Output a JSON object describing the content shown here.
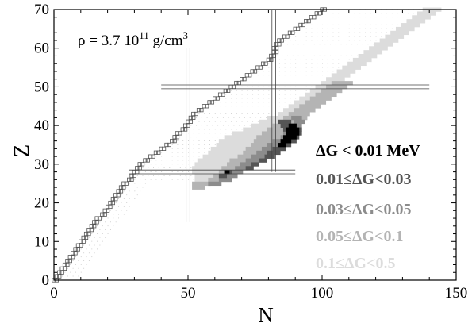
{
  "chart_data": {
    "type": "heatmap",
    "xlabel": "N",
    "ylabel": "Z",
    "xlim": [
      0,
      150
    ],
    "ylim": [
      0,
      70
    ],
    "xticks": [
      "0",
      "50",
      "100",
      "150"
    ],
    "yticks": [
      "0",
      "10",
      "20",
      "30",
      "40",
      "50",
      "60",
      "70"
    ],
    "annotation": {
      "prefix": "ρ = 3.7 10",
      "exponent": "11",
      "unit": " g/cm",
      "unit_exponent": "3"
    },
    "magic_numbers": {
      "N": [
        50,
        82
      ],
      "Z": [
        28,
        50
      ]
    },
    "legend": [
      {
        "label": "ΔG < 0.01 MeV",
        "color": "#000000"
      },
      {
        "label": "0.01≤ΔG<0.03",
        "color": "#555555"
      },
      {
        "label": "0.03≤ΔG<0.05",
        "color": "#8c8c8c"
      },
      {
        "label": "0.05≤ΔG<0.1",
        "color": "#b4b4b4"
      },
      {
        "label": "0.1≤ΔG<0.5",
        "color": "#dcdcdc"
      }
    ],
    "drip_line_N_by_Z": [
      [
        0,
        0
      ],
      [
        1,
        1
      ],
      [
        2,
        2
      ],
      [
        3,
        3
      ],
      [
        4,
        4
      ],
      [
        5,
        5
      ],
      [
        6,
        6
      ],
      [
        7,
        7
      ],
      [
        8,
        8
      ],
      [
        9,
        9
      ],
      [
        10,
        10
      ],
      [
        11,
        11
      ],
      [
        12,
        12
      ],
      [
        13,
        13
      ],
      [
        14,
        14
      ],
      [
        15,
        15
      ],
      [
        16,
        16
      ],
      [
        17,
        18
      ],
      [
        18,
        19
      ],
      [
        19,
        20
      ],
      [
        20,
        21
      ],
      [
        21,
        22
      ],
      [
        22,
        23
      ],
      [
        23,
        24
      ],
      [
        24,
        25
      ],
      [
        25,
        26
      ],
      [
        26,
        28
      ],
      [
        27,
        29
      ],
      [
        28,
        30
      ],
      [
        29,
        31
      ],
      [
        30,
        32
      ],
      [
        31,
        34
      ],
      [
        32,
        36
      ],
      [
        33,
        38
      ],
      [
        34,
        40
      ],
      [
        35,
        42
      ],
      [
        36,
        44
      ],
      [
        37,
        45
      ],
      [
        38,
        46
      ],
      [
        39,
        48
      ],
      [
        40,
        49
      ],
      [
        41,
        50
      ],
      [
        42,
        51
      ],
      [
        43,
        52
      ],
      [
        44,
        54
      ],
      [
        45,
        56
      ],
      [
        46,
        58
      ],
      [
        47,
        60
      ],
      [
        48,
        62
      ],
      [
        49,
        64
      ],
      [
        50,
        66
      ],
      [
        51,
        68
      ],
      [
        52,
        70
      ],
      [
        53,
        72
      ],
      [
        54,
        74
      ],
      [
        55,
        76
      ],
      [
        56,
        78
      ],
      [
        57,
        80
      ],
      [
        58,
        81
      ],
      [
        59,
        82
      ],
      [
        60,
        82
      ],
      [
        61,
        83
      ],
      [
        62,
        84
      ],
      [
        63,
        86
      ],
      [
        64,
        88
      ],
      [
        65,
        90
      ],
      [
        66,
        92
      ],
      [
        67,
        94
      ],
      [
        68,
        96
      ],
      [
        69,
        98
      ],
      [
        70,
        100
      ]
    ],
    "bands": [
      {
        "level": 4,
        "cells": [
          [
            26,
            53,
            58
          ],
          [
            27,
            53,
            60
          ],
          [
            28,
            52,
            62
          ],
          [
            29,
            52,
            64
          ],
          [
            30,
            53,
            66
          ],
          [
            31,
            54,
            67
          ],
          [
            32,
            56,
            69
          ],
          [
            33,
            58,
            71
          ],
          [
            34,
            59,
            73
          ],
          [
            35,
            61,
            75
          ],
          [
            36,
            62,
            77
          ],
          [
            37,
            64,
            79
          ],
          [
            38,
            67,
            81
          ],
          [
            39,
            71,
            83
          ],
          [
            40,
            74,
            85
          ],
          [
            41,
            77,
            87
          ],
          [
            42,
            80,
            89
          ],
          [
            43,
            84,
            90
          ],
          [
            44,
            86,
            92
          ],
          [
            45,
            88,
            94
          ],
          [
            46,
            90,
            96
          ],
          [
            47,
            92,
            98
          ],
          [
            48,
            94,
            100
          ],
          [
            49,
            96,
            102
          ],
          [
            50,
            98,
            104
          ],
          [
            51,
            100,
            106
          ],
          [
            52,
            102,
            108
          ],
          [
            53,
            104,
            110
          ],
          [
            54,
            106,
            112
          ],
          [
            55,
            108,
            114
          ],
          [
            56,
            110,
            116
          ],
          [
            57,
            112,
            118
          ],
          [
            58,
            114,
            120
          ],
          [
            59,
            116,
            122
          ],
          [
            60,
            118,
            124
          ],
          [
            61,
            120,
            126
          ],
          [
            62,
            122,
            128
          ],
          [
            63,
            124,
            130
          ],
          [
            64,
            126,
            132
          ],
          [
            65,
            128,
            134
          ],
          [
            66,
            130,
            136
          ],
          [
            67,
            132,
            138
          ],
          [
            68,
            134,
            140
          ],
          [
            69,
            136,
            142
          ],
          [
            70,
            138,
            144
          ]
        ]
      },
      {
        "level": 3,
        "cells": [
          [
            24,
            52,
            56
          ],
          [
            25,
            52,
            58
          ],
          [
            26,
            58,
            62
          ],
          [
            27,
            60,
            64
          ],
          [
            28,
            62,
            66
          ],
          [
            29,
            63,
            68
          ],
          [
            30,
            65,
            70
          ],
          [
            31,
            66,
            72
          ],
          [
            32,
            69,
            74
          ],
          [
            33,
            71,
            76
          ],
          [
            34,
            72,
            78
          ],
          [
            35,
            74,
            80
          ],
          [
            36,
            75,
            82
          ],
          [
            37,
            76,
            85
          ],
          [
            38,
            78,
            86
          ],
          [
            39,
            80,
            88
          ],
          [
            40,
            82,
            90
          ],
          [
            41,
            84,
            92
          ],
          [
            42,
            86,
            94
          ],
          [
            43,
            88,
            95
          ],
          [
            44,
            90,
            97
          ],
          [
            45,
            92,
            99
          ],
          [
            46,
            94,
            101
          ],
          [
            47,
            96,
            103
          ],
          [
            48,
            98,
            105
          ],
          [
            49,
            100,
            107
          ],
          [
            50,
            102,
            109
          ],
          [
            51,
            104,
            111
          ]
        ]
      },
      {
        "level": 2,
        "cells": [
          [
            25,
            58,
            62
          ],
          [
            26,
            62,
            66
          ],
          [
            27,
            64,
            68
          ],
          [
            28,
            66,
            70
          ],
          [
            29,
            68,
            72
          ],
          [
            30,
            70,
            74
          ],
          [
            31,
            72,
            76
          ],
          [
            32,
            74,
            78
          ],
          [
            33,
            76,
            81
          ],
          [
            34,
            78,
            84
          ],
          [
            35,
            80,
            86
          ],
          [
            36,
            82,
            88
          ],
          [
            37,
            85,
            90
          ],
          [
            38,
            86,
            91
          ],
          [
            39,
            88,
            92
          ],
          [
            40,
            90,
            92
          ],
          [
            41,
            90,
            93
          ],
          [
            42,
            89,
            92
          ]
        ]
      },
      {
        "level": 1,
        "cells": [
          [
            27,
            62,
            64
          ],
          [
            28,
            64,
            66
          ],
          [
            29,
            72,
            74
          ],
          [
            30,
            74,
            76
          ],
          [
            31,
            77,
            79
          ],
          [
            32,
            79,
            82
          ],
          [
            33,
            80,
            84
          ],
          [
            34,
            82,
            86
          ],
          [
            35,
            84,
            88
          ],
          [
            36,
            85,
            90
          ],
          [
            37,
            86,
            91
          ],
          [
            38,
            87,
            92
          ],
          [
            39,
            86,
            92
          ],
          [
            40,
            85,
            90
          ],
          [
            41,
            84,
            88
          ]
        ]
      },
      {
        "level": 0,
        "cells": [
          [
            28,
            64,
            65
          ],
          [
            35,
            84,
            86
          ],
          [
            36,
            85,
            88
          ],
          [
            37,
            86,
            90
          ],
          [
            38,
            87,
            91
          ],
          [
            39,
            87,
            91
          ],
          [
            40,
            88,
            90
          ]
        ]
      }
    ],
    "dotted_region": {
      "left_offset": 2,
      "right_offset": 8
    }
  }
}
